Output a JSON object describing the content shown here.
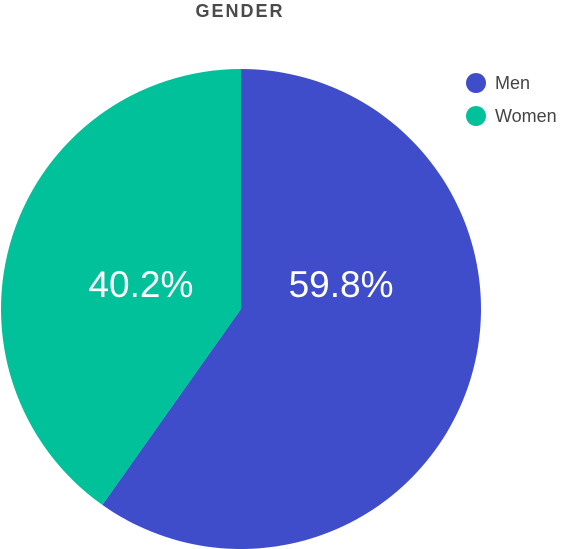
{
  "chart_data": {
    "type": "pie",
    "title": "GENDER",
    "categories": [
      "Men",
      "Women"
    ],
    "values": [
      59.8,
      40.2
    ],
    "value_labels": [
      "59.8%",
      "40.2%"
    ],
    "colors": [
      "#3f4dcb",
      "#00c19a"
    ],
    "legend": "top-right"
  }
}
